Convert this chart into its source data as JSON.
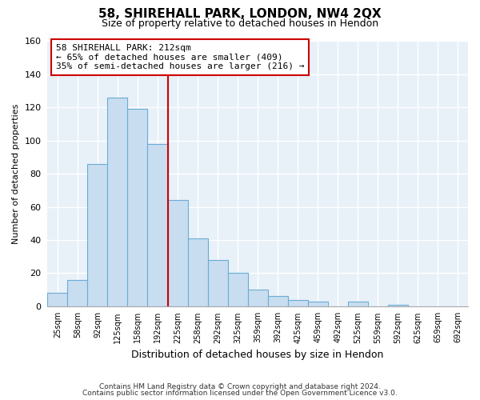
{
  "title": "58, SHIREHALL PARK, LONDON, NW4 2QX",
  "subtitle": "Size of property relative to detached houses in Hendon",
  "xlabel": "Distribution of detached houses by size in Hendon",
  "ylabel": "Number of detached properties",
  "bin_labels": [
    "25sqm",
    "58sqm",
    "92sqm",
    "125sqm",
    "158sqm",
    "192sqm",
    "225sqm",
    "258sqm",
    "292sqm",
    "325sqm",
    "359sqm",
    "392sqm",
    "425sqm",
    "459sqm",
    "492sqm",
    "525sqm",
    "559sqm",
    "592sqm",
    "625sqm",
    "659sqm",
    "692sqm"
  ],
  "bar_heights": [
    8,
    16,
    86,
    126,
    119,
    98,
    64,
    41,
    28,
    20,
    10,
    6,
    4,
    3,
    0,
    3,
    0,
    1,
    0,
    0,
    0
  ],
  "bar_color": "#c8ddf0",
  "bar_edge_color": "#6aacd4",
  "vline_x": 6,
  "vline_color": "#cc0000",
  "annotation_title": "58 SHIREHALL PARK: 212sqm",
  "annotation_line1": "← 65% of detached houses are smaller (409)",
  "annotation_line2": "35% of semi-detached houses are larger (216) →",
  "annotation_box_color": "#ffffff",
  "annotation_box_edge": "#cc0000",
  "footnote1": "Contains HM Land Registry data © Crown copyright and database right 2024.",
  "footnote2": "Contains public sector information licensed under the Open Government Licence v3.0.",
  "ylim": [
    0,
    160
  ],
  "yticks": [
    0,
    20,
    40,
    60,
    80,
    100,
    120,
    140,
    160
  ],
  "fig_background": "#ffffff",
  "plot_background": "#e8f0f8",
  "grid_color": "#ffffff",
  "title_fontsize": 11,
  "subtitle_fontsize": 9
}
